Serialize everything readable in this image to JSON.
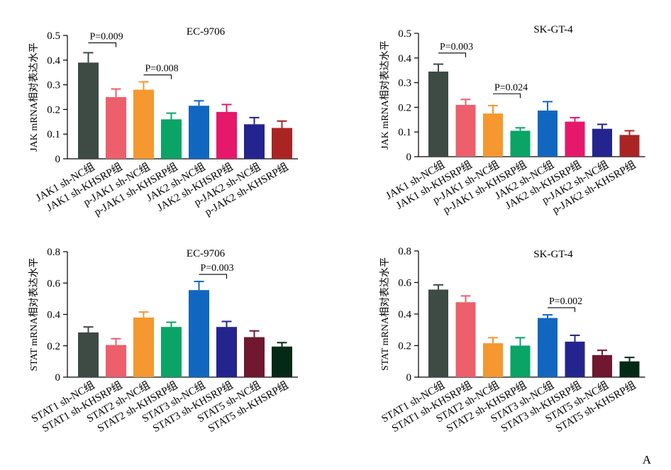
{
  "figure_label": "A",
  "chart_data": [
    {
      "type": "bar",
      "title": "EC-9706",
      "ylabel": "JAK mRNA相对表达水平",
      "ylim": [
        0,
        0.5
      ],
      "yticks": [
        "0",
        "0.1",
        "0.2",
        "0.3",
        "0.4",
        "0.5"
      ],
      "categories": [
        "JAK1 sh-NC组",
        "JAK1 sh-KHSRP组",
        "p-JAK1 sh-NC组",
        "p-JAK1 sh-KHSRP组",
        "JAK2 sh-NC组",
        "JAK2 sh-KHSRP组",
        "p-JAK2 sh-NC组",
        "p-JAK2 sh-KHSRP组"
      ],
      "values": [
        0.39,
        0.25,
        0.28,
        0.16,
        0.215,
        0.19,
        0.14,
        0.125
      ],
      "errors": [
        0.04,
        0.033,
        0.032,
        0.025,
        0.02,
        0.03,
        0.027,
        0.028
      ],
      "colors": [
        "#3e4a44",
        "#ec5f6b",
        "#f4982f",
        "#0aa466",
        "#1167c0",
        "#e6186b",
        "#24248e",
        "#ab2424"
      ],
      "annotations": [
        {
          "text": "P=0.009",
          "from": 0,
          "to": 1,
          "y": 0.47
        },
        {
          "text": "P=0.008",
          "from": 2,
          "to": 3,
          "y": 0.34
        }
      ]
    },
    {
      "type": "bar",
      "title": "SK-GT-4",
      "ylabel": "JAK mRNA相对表达水平",
      "ylim": [
        0,
        0.5
      ],
      "yticks": [
        "0",
        "0.1",
        "0.2",
        "0.3",
        "0.4",
        "0.5"
      ],
      "categories": [
        "JAK1 sh-NC组",
        "JAK1 sh-KHSRP组",
        "p-JAK1 sh-NC组",
        "p-JAK1 sh-KHSRP组",
        "JAK2 sh-NC组",
        "JAK2 sh-KHSRP组",
        "p-JAK2 sh-NC组",
        "p-JAK2 sh-KHSRP组"
      ],
      "values": [
        0.345,
        0.21,
        0.175,
        0.105,
        0.187,
        0.142,
        0.113,
        0.088
      ],
      "errors": [
        0.03,
        0.022,
        0.032,
        0.012,
        0.036,
        0.016,
        0.018,
        0.017
      ],
      "colors": [
        "#3e4a44",
        "#ec5f6b",
        "#f4982f",
        "#0aa466",
        "#1167c0",
        "#e6186b",
        "#24248e",
        "#ab2424"
      ],
      "annotations": [
        {
          "text": "P=0.003",
          "from": 0,
          "to": 1,
          "y": 0.42
        },
        {
          "text": "P=0.024",
          "from": 2,
          "to": 3,
          "y": 0.255
        }
      ]
    },
    {
      "type": "bar",
      "title": "EC-9706",
      "ylabel": "STAT mRNA相对表达水平",
      "ylim": [
        0,
        0.8
      ],
      "yticks": [
        "0",
        "0.2",
        "0.4",
        "0.6",
        "0.8"
      ],
      "categories": [
        "STAT1 sh-NC组",
        "STAT1 sh-KHSRP组",
        "STAT2 sh-NC组",
        "STAT2 sh-KHSRP组",
        "STAT3 sh-NC组",
        "STAT3 sh-KHSRP组",
        "STAT5 sh-NC组",
        "STAT5 sh-KHSRP组"
      ],
      "values": [
        0.285,
        0.205,
        0.38,
        0.32,
        0.555,
        0.32,
        0.255,
        0.195
      ],
      "errors": [
        0.035,
        0.04,
        0.035,
        0.03,
        0.055,
        0.035,
        0.04,
        0.025
      ],
      "colors": [
        "#3e4a44",
        "#ec5f6b",
        "#f4982f",
        "#0aa466",
        "#1167c0",
        "#24248e",
        "#6f1830",
        "#042a16"
      ],
      "annotations": [
        {
          "text": "P=0.003",
          "from": 4,
          "to": 5,
          "y": 0.655
        }
      ]
    },
    {
      "type": "bar",
      "title": "SK-GT-4",
      "ylabel": "STAT mRNA相对表达水平",
      "ylim": [
        0,
        0.8
      ],
      "yticks": [
        "0",
        "0.2",
        "0.4",
        "0.6",
        "0.8"
      ],
      "categories": [
        "STAT1 sh-NC组",
        "STAT1 sh-KHSRP组",
        "STAT2 sh-NC组",
        "STAT2 sh-KHSRP组",
        "STAT3 sh-NC组",
        "STAT3 sh-KHSRP组",
        "STAT5 sh-NC组",
        "STAT5 sh-KHSRP组"
      ],
      "values": [
        0.555,
        0.475,
        0.215,
        0.2,
        0.375,
        0.225,
        0.14,
        0.1
      ],
      "errors": [
        0.03,
        0.04,
        0.035,
        0.05,
        0.02,
        0.04,
        0.03,
        0.025
      ],
      "colors": [
        "#3e4a44",
        "#ec5f6b",
        "#f4982f",
        "#0aa466",
        "#1167c0",
        "#24248e",
        "#6f1830",
        "#042a16"
      ],
      "annotations": [
        {
          "text": "P=0.002",
          "from": 4,
          "to": 5,
          "y": 0.44
        }
      ]
    }
  ]
}
